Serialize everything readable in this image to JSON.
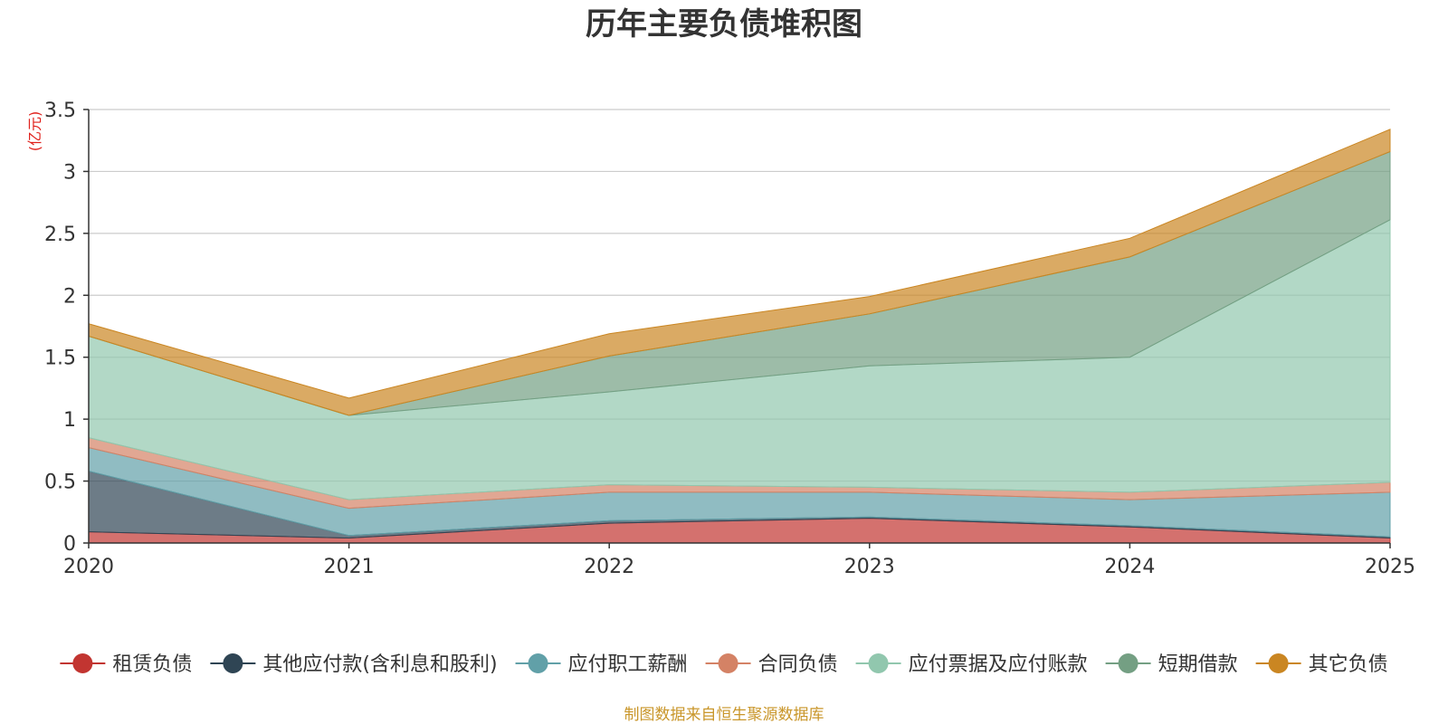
{
  "chart_data": {
    "type": "area",
    "stacked": true,
    "title": "历年主要负债堆积图",
    "unit_label": "(亿元)",
    "x": [
      "2020",
      "2021",
      "2022",
      "2023",
      "2024",
      "2025"
    ],
    "ylim": [
      0,
      3.5
    ],
    "yticks": [
      "0",
      "0.5",
      "1",
      "1.5",
      "2",
      "2.5",
      "3",
      "3.5"
    ],
    "grid": true,
    "legend_position": "bottom",
    "series": [
      {
        "name": "租赁负债",
        "color": "#c23531",
        "values": [
          0.09,
          0.04,
          0.16,
          0.2,
          0.13,
          0.04
        ]
      },
      {
        "name": "其他应付款(含利息和股利)",
        "color": "#2f4554",
        "values": [
          0.49,
          0.02,
          0.02,
          0.01,
          0.01,
          0.01
        ]
      },
      {
        "name": "应付职工薪酬",
        "color": "#61a0a8",
        "values": [
          0.19,
          0.22,
          0.23,
          0.2,
          0.21,
          0.36
        ]
      },
      {
        "name": "合同负债",
        "color": "#d48265",
        "values": [
          0.08,
          0.07,
          0.06,
          0.04,
          0.06,
          0.08
        ]
      },
      {
        "name": "应付票据及应付账款",
        "color": "#91c7ae",
        "values": [
          0.82,
          0.68,
          0.75,
          0.98,
          1.09,
          2.12
        ]
      },
      {
        "name": "短期借款",
        "color": "#749f83",
        "values": [
          0.0,
          0.0,
          0.29,
          0.42,
          0.81,
          0.55
        ]
      },
      {
        "name": "其它负债",
        "color": "#ca8622",
        "values": [
          0.1,
          0.14,
          0.18,
          0.14,
          0.15,
          0.18
        ]
      }
    ]
  },
  "footer": {
    "source": "制图数据来自恒生聚源数据库"
  }
}
